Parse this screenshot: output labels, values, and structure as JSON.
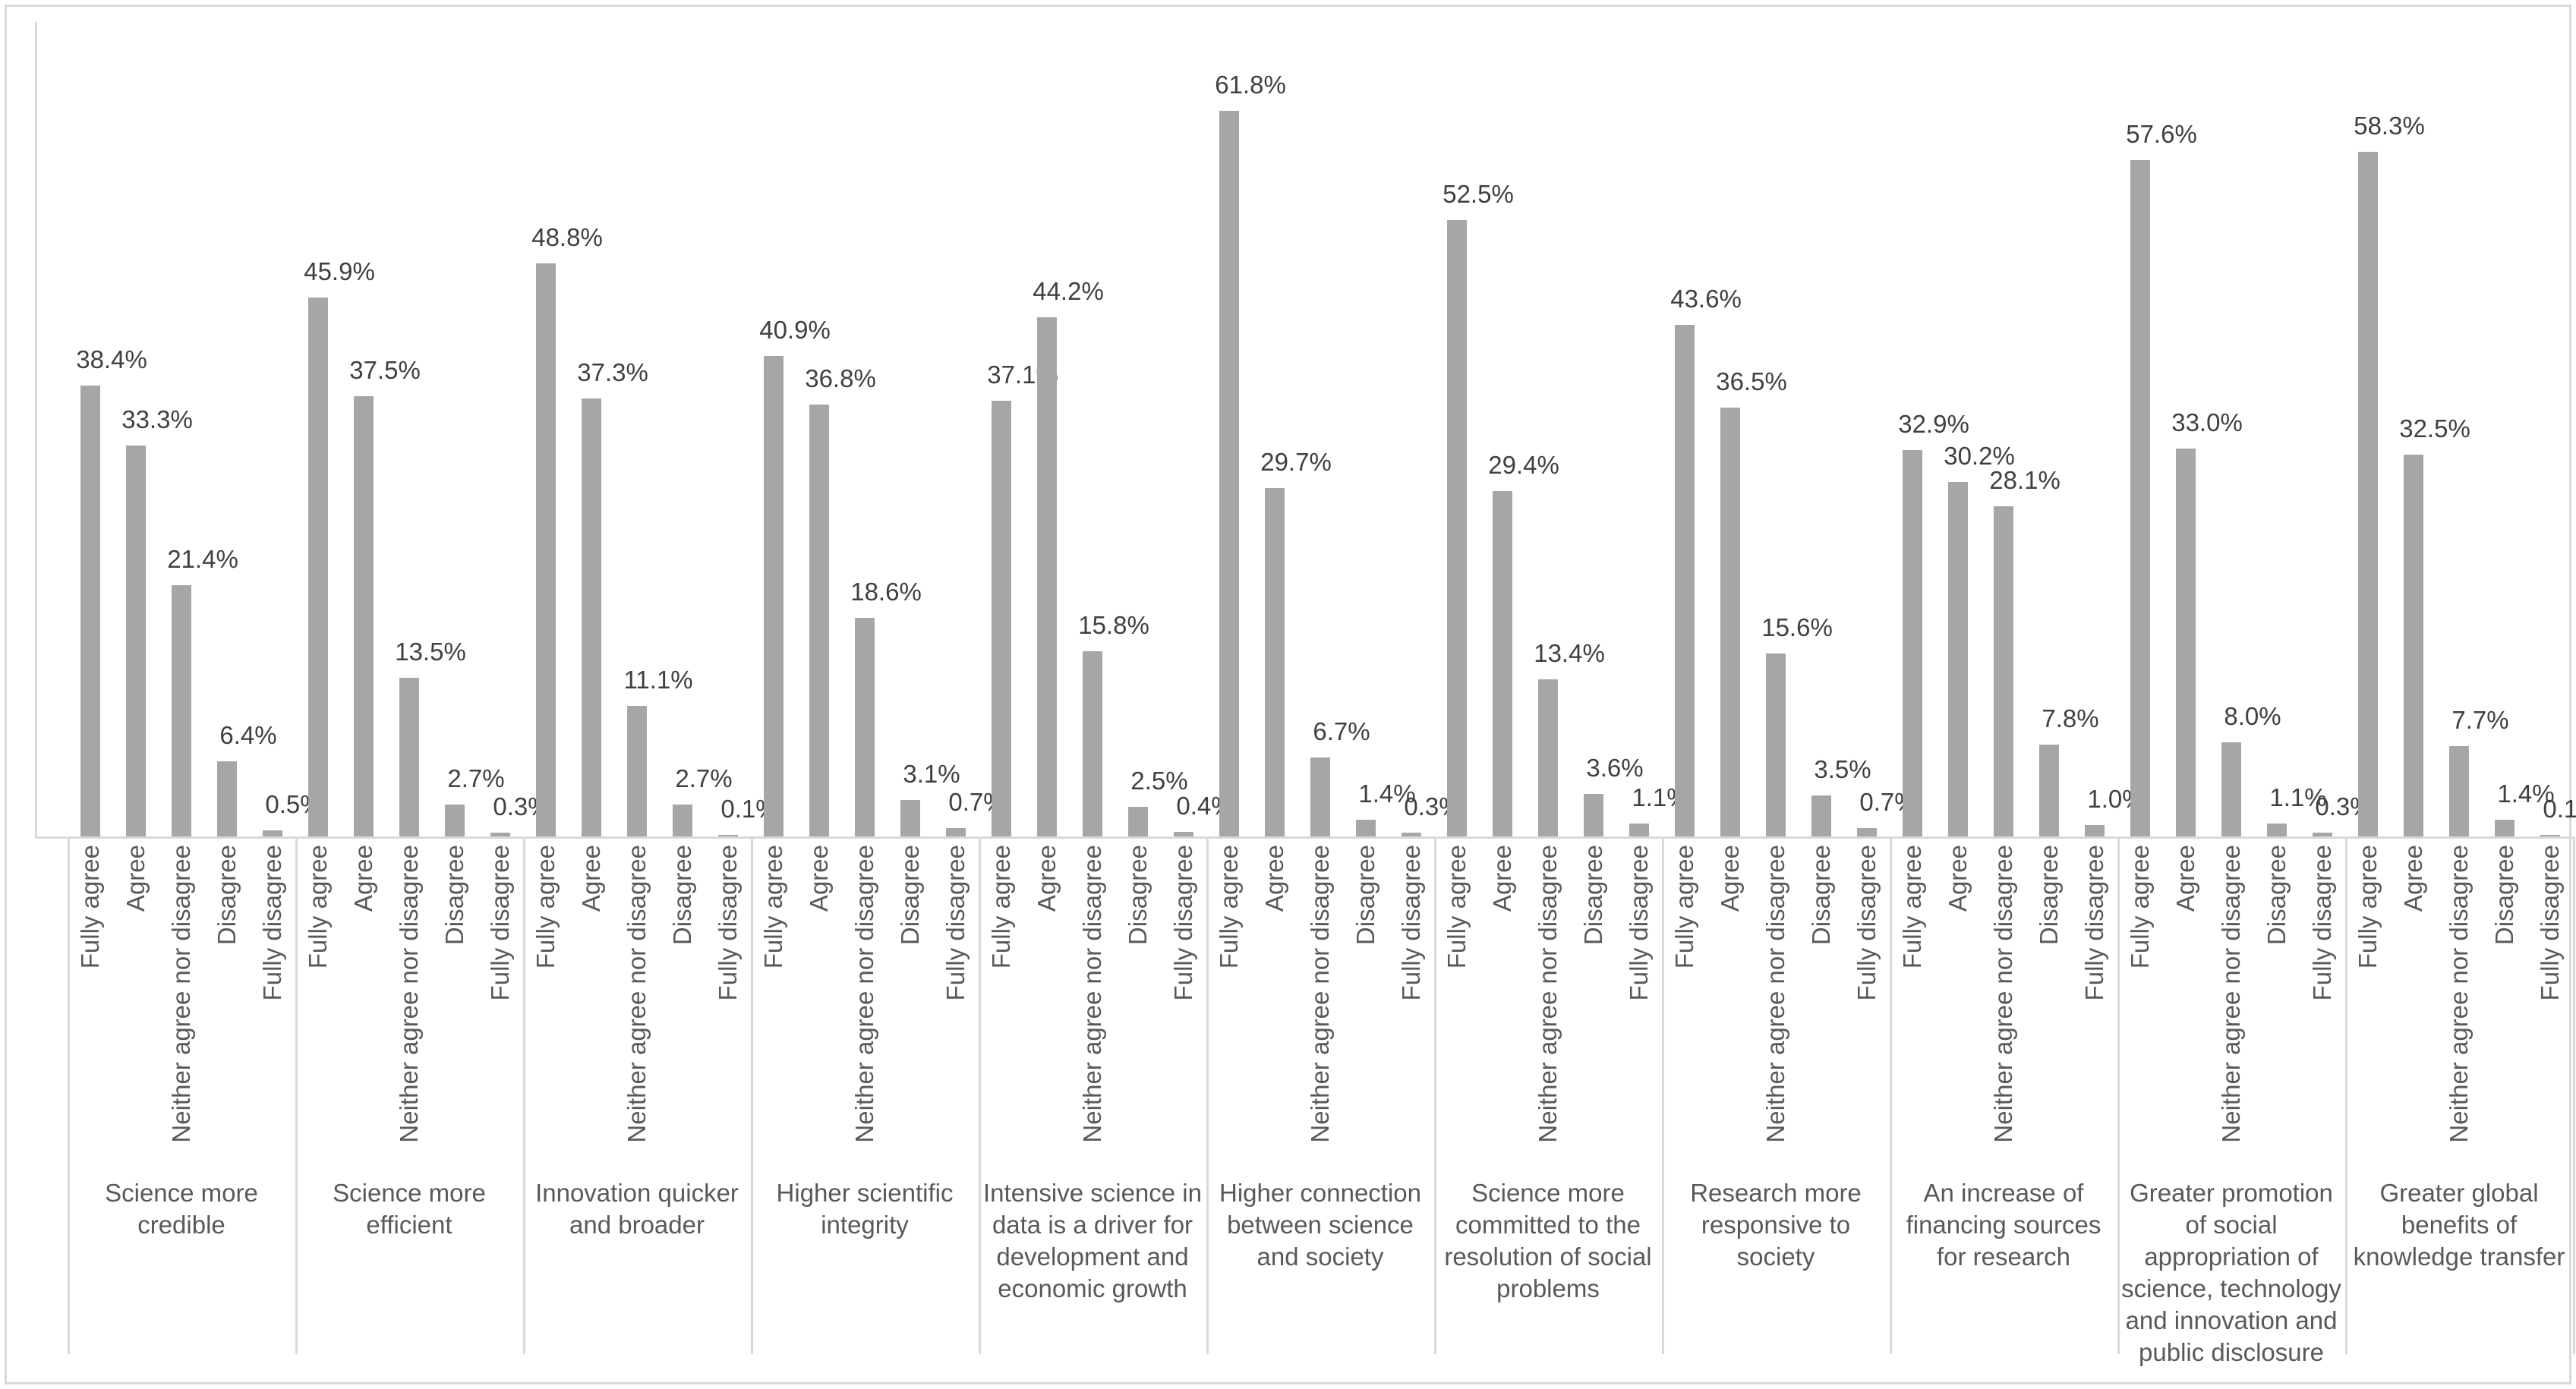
{
  "chart_data": {
    "type": "bar",
    "title": "",
    "xlabel": "",
    "ylabel": "",
    "ylim": [
      0,
      65
    ],
    "grid": false,
    "legend": "none",
    "bar_color": "#a6a6a6",
    "value_label_color": "#404040",
    "axis_label_color": "#595959",
    "axis_line_color": "#d9d9d9",
    "value_suffix": "%",
    "response_options": [
      "Fully agree",
      "Agree",
      "Neither agree nor disagree",
      "Disagree",
      "Fully disagree"
    ],
    "categories": [
      {
        "label": "Science more credible",
        "values": [
          38.4,
          33.3,
          21.4,
          6.4,
          0.5
        ]
      },
      {
        "label": "Science more efficient",
        "values": [
          45.9,
          37.5,
          13.5,
          2.7,
          0.3
        ]
      },
      {
        "label": "Innovation quicker and broader",
        "values": [
          48.8,
          37.3,
          11.1,
          2.7,
          0.1
        ]
      },
      {
        "label": "Higher scientific integrity",
        "values": [
          40.9,
          36.8,
          18.6,
          3.1,
          0.7
        ]
      },
      {
        "label": "Intensive science in data is a driver for development and economic growth",
        "values": [
          37.1,
          44.2,
          15.8,
          2.5,
          0.4
        ]
      },
      {
        "label": "Higher connection between science and society",
        "values": [
          61.8,
          29.7,
          6.7,
          1.4,
          0.3
        ]
      },
      {
        "label": "Science more committed to the resolution of social problems",
        "values": [
          52.5,
          29.4,
          13.4,
          3.6,
          1.1
        ]
      },
      {
        "label": "Research more responsive to society",
        "values": [
          43.6,
          36.5,
          15.6,
          3.5,
          0.7
        ]
      },
      {
        "label": "An increase of financing sources for research",
        "values": [
          32.9,
          30.2,
          28.1,
          7.8,
          1.0
        ]
      },
      {
        "label": "Greater promotion of social appropriation of science, technology and innovation and public disclosure",
        "values": [
          57.6,
          33.0,
          8.0,
          1.1,
          0.3
        ]
      },
      {
        "label": "Greater global benefits of knowledge transfer",
        "values": [
          58.3,
          32.5,
          7.7,
          1.4,
          0.1
        ]
      }
    ]
  }
}
